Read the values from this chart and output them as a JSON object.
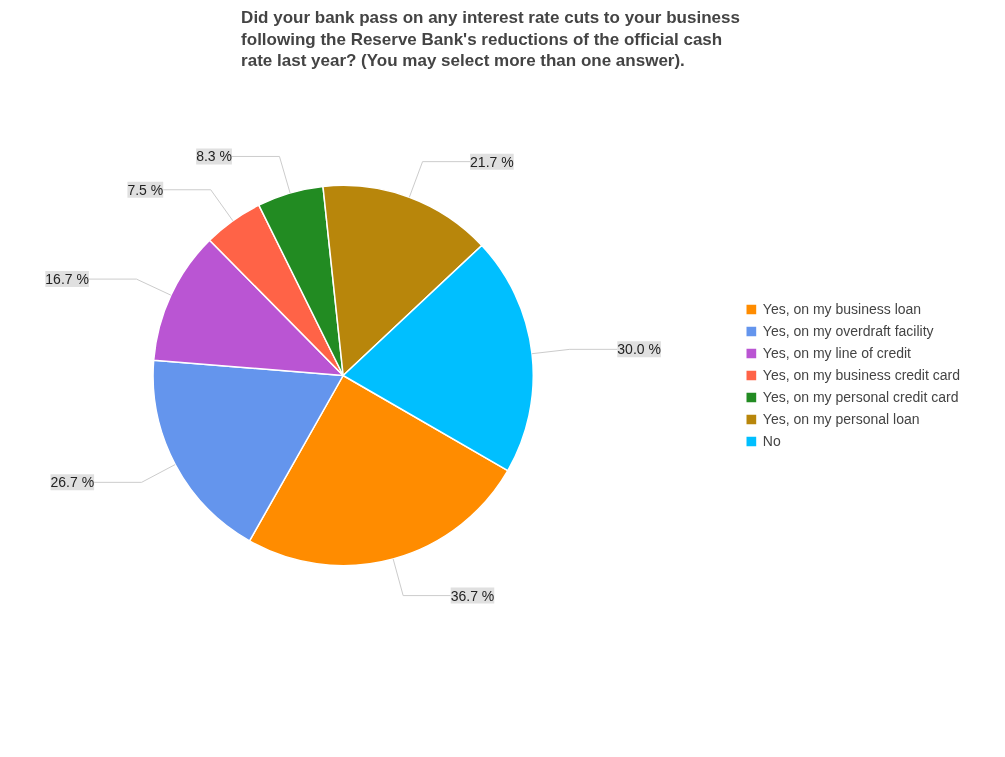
{
  "chart_data": {
    "type": "pie",
    "title": "Did your bank pass on any interest rate cuts to your business following the Reserve Bank's reductions of the official cash rate last year? (You may select more than one answer).",
    "categories": [
      "Yes, on my business loan",
      "Yes, on my overdraft facility",
      "Yes, on my line of credit",
      "Yes, on my business credit card",
      "Yes, on my personal credit card",
      "Yes, on my personal loan",
      "No"
    ],
    "values": [
      36.7,
      26.7,
      16.7,
      7.5,
      8.3,
      21.7,
      30.0
    ],
    "colors": [
      "#ff8c00",
      "#6495ed",
      "#ba55d3",
      "#ff6347",
      "#228b22",
      "#b8860b",
      "#00bfff"
    ],
    "value_labels": [
      "36.7 %",
      "26.7 %",
      "16.7 %",
      "7.5 %",
      "8.3 %",
      "21.7 %",
      "30.0 %"
    ],
    "legend": "right"
  }
}
